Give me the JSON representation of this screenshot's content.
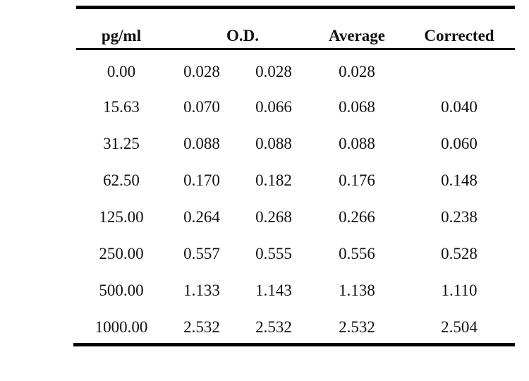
{
  "table": {
    "headers": {
      "pg_ml": "pg/ml",
      "od": "O.D.",
      "average": "Average",
      "corrected": "Corrected"
    },
    "rows": [
      {
        "pg_ml": "0.00",
        "od1": "0.028",
        "od2": "0.028",
        "average": "0.028",
        "corrected": ""
      },
      {
        "pg_ml": "15.63",
        "od1": "0.070",
        "od2": "0.066",
        "average": "0.068",
        "corrected": "0.040"
      },
      {
        "pg_ml": "31.25",
        "od1": "0.088",
        "od2": "0.088",
        "average": "0.088",
        "corrected": "0.060"
      },
      {
        "pg_ml": "62.50",
        "od1": "0.170",
        "od2": "0.182",
        "average": "0.176",
        "corrected": "0.148"
      },
      {
        "pg_ml": "125.00",
        "od1": "0.264",
        "od2": "0.268",
        "average": "0.266",
        "corrected": "0.238"
      },
      {
        "pg_ml": "250.00",
        "od1": "0.557",
        "od2": "0.555",
        "average": "0.556",
        "corrected": "0.528"
      },
      {
        "pg_ml": "500.00",
        "od1": "1.133",
        "od2": "1.143",
        "average": "1.138",
        "corrected": "1.110"
      },
      {
        "pg_ml": "1000.00",
        "od1": "2.532",
        "od2": "2.532",
        "average": "2.532",
        "corrected": "2.504"
      }
    ]
  }
}
